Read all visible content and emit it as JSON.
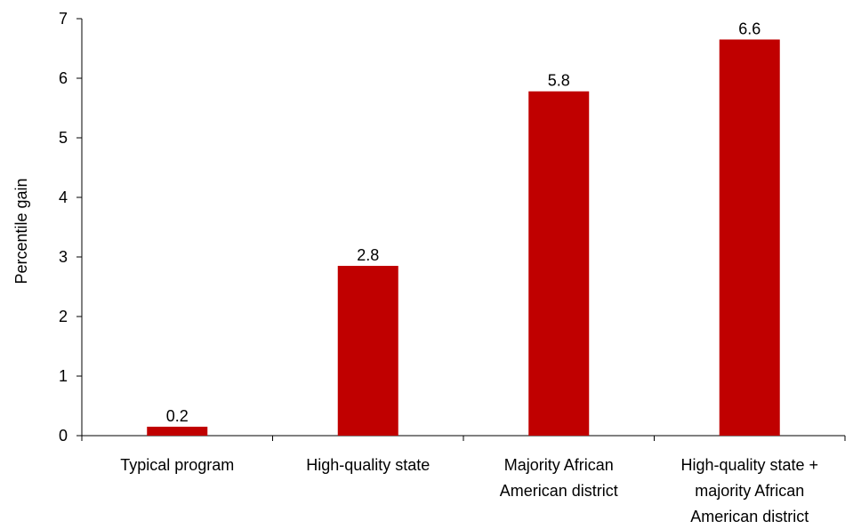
{
  "chart_data": {
    "type": "bar",
    "categories": [
      [
        "Typical program"
      ],
      [
        "High-quality state"
      ],
      [
        "Majority African",
        "American district"
      ],
      [
        "High-quality state +",
        "majority African",
        "American district"
      ]
    ],
    "values": [
      0.15,
      2.85,
      5.78,
      6.65
    ],
    "data_labels": [
      "0.2",
      "2.8",
      "5.8",
      "6.6"
    ],
    "ylabel": "Percentile gain",
    "xlabel": "",
    "title": "",
    "ylim": [
      0,
      7
    ],
    "yticks": [
      0,
      1,
      2,
      3,
      4,
      5,
      6,
      7
    ],
    "grid": false,
    "legend": "none",
    "bar_color": "#c00000"
  }
}
